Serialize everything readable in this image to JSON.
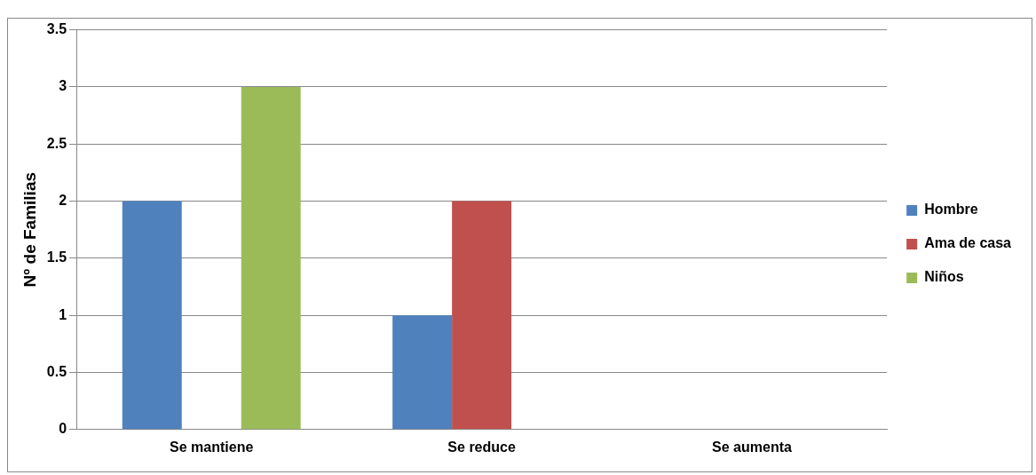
{
  "chart_data": {
    "type": "bar",
    "ylabel": "Nº de Familias",
    "categories": [
      "Se mantiene",
      "Se reduce",
      "Se aumenta"
    ],
    "series": [
      {
        "name": "Hombre",
        "color": "#4f81bd",
        "values": [
          2,
          1,
          0
        ]
      },
      {
        "name": "Ama de casa",
        "color": "#c0504d",
        "values": [
          0,
          2,
          0
        ]
      },
      {
        "name": "Niños",
        "color": "#9bbb59",
        "values": [
          3,
          0,
          0
        ]
      }
    ],
    "ylim": [
      0,
      3.5
    ],
    "yticks": [
      0,
      0.5,
      1,
      1.5,
      2,
      2.5,
      3,
      3.5
    ],
    "grid": "y",
    "legend": "right"
  }
}
